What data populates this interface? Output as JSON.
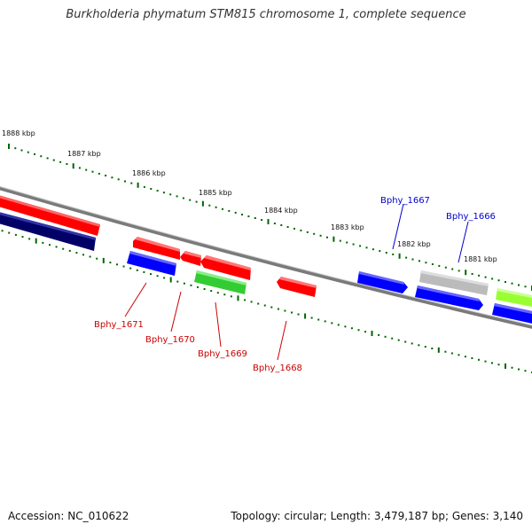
{
  "title": "Burkholderia phymatum STM815 chromosome 1, complete sequence",
  "footer": {
    "accession": "Accession: NC_010622",
    "summary": "Topology: circular; Length: 3,479,187 bp; Genes: 3,140"
  },
  "colors": {
    "forward_strand": "#ff0000",
    "reverse_strand": "#0000ff",
    "dark_reverse": "#000066",
    "green_gene": "#33cc33",
    "lime_gene": "#99ff33",
    "gray_gene": "#bbbbbb",
    "backbone": "#808080",
    "tick": "#006600",
    "label_red": "#cc0000",
    "label_blue": "#0000cc"
  },
  "ruler_labels": [
    "1888 kbp",
    "1887 kbp",
    "1886 kbp",
    "1885 kbp",
    "1884 kbp",
    "1883 kbp",
    "1882 kbp",
    "1881 kbp"
  ],
  "gene_labels": [
    {
      "name": "Bphy_1671",
      "color": "label_red"
    },
    {
      "name": "Bphy_1670",
      "color": "label_red"
    },
    {
      "name": "Bphy_1669",
      "color": "label_red"
    },
    {
      "name": "Bphy_1668",
      "color": "label_red"
    },
    {
      "name": "Bphy_1667",
      "color": "label_blue"
    },
    {
      "name": "Bphy_1666",
      "color": "label_blue"
    }
  ]
}
